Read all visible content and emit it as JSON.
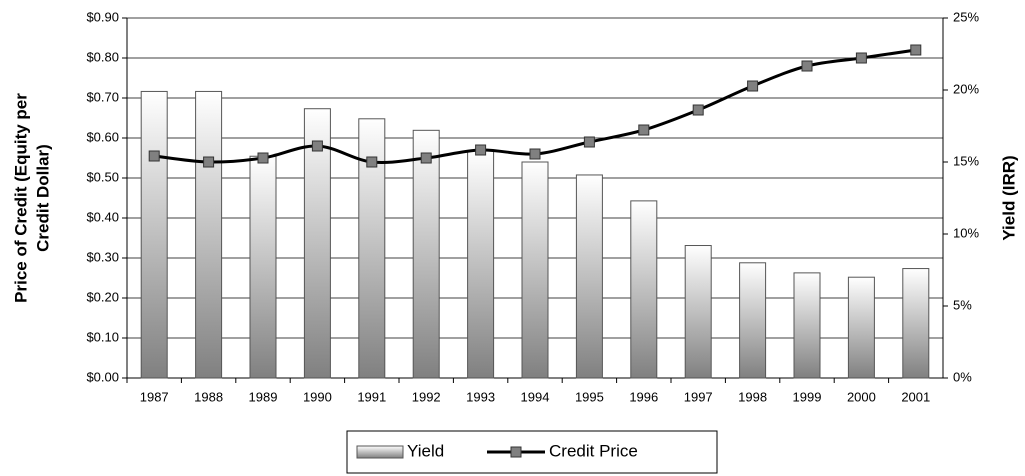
{
  "chart_data": {
    "type": "bar-line",
    "y_label": [
      "Price of Credit (Equity per",
      "Credit Dollar)"
    ],
    "y2_label": "Yield (IRR)",
    "categories": [
      "1987",
      "1988",
      "1989",
      "1990",
      "1991",
      "1992",
      "1993",
      "1994",
      "1995",
      "1996",
      "1997",
      "1998",
      "1999",
      "2000",
      "2001"
    ],
    "series": [
      {
        "name": "Yield",
        "type": "bar",
        "axis": "y2",
        "color": "#808080",
        "values": [
          19.9,
          19.9,
          15.4,
          18.7,
          18.0,
          17.2,
          15.8,
          15.0,
          14.1,
          12.3,
          9.2,
          8.0,
          7.3,
          7.0,
          7.6
        ]
      },
      {
        "name": "Credit Price",
        "type": "line",
        "color": "#000000",
        "marker_color": "#808080",
        "values": [
          0.555,
          0.54,
          0.55,
          0.58,
          0.54,
          0.55,
          0.57,
          0.56,
          0.59,
          0.62,
          0.67,
          0.73,
          0.78,
          0.8,
          0.82
        ]
      }
    ],
    "ylim": [
      0,
      0.9
    ],
    "yticks": [
      {
        "value": 0,
        "label": "$0.00"
      },
      {
        "value": 0.1,
        "label": "$0.10"
      },
      {
        "value": 0.2,
        "label": "$0.20"
      },
      {
        "value": 0.3,
        "label": "$0.30"
      },
      {
        "value": 0.4,
        "label": "$0.40"
      },
      {
        "value": 0.5,
        "label": "$0.50"
      },
      {
        "value": 0.6,
        "label": "$0.60"
      },
      {
        "value": 0.7,
        "label": "$0.70"
      },
      {
        "value": 0.8,
        "label": "$0.80"
      },
      {
        "value": 0.9,
        "label": "$0.90"
      }
    ],
    "y2lim": [
      0,
      25
    ],
    "y2ticks": [
      {
        "value": 0,
        "label": "0%"
      },
      {
        "value": 5,
        "label": "5%"
      },
      {
        "value": 10,
        "label": "10%"
      },
      {
        "value": 15,
        "label": "15%"
      },
      {
        "value": 20,
        "label": "20%"
      },
      {
        "value": 25,
        "label": "25%"
      }
    ],
    "grid": true,
    "legend": "bottom"
  }
}
